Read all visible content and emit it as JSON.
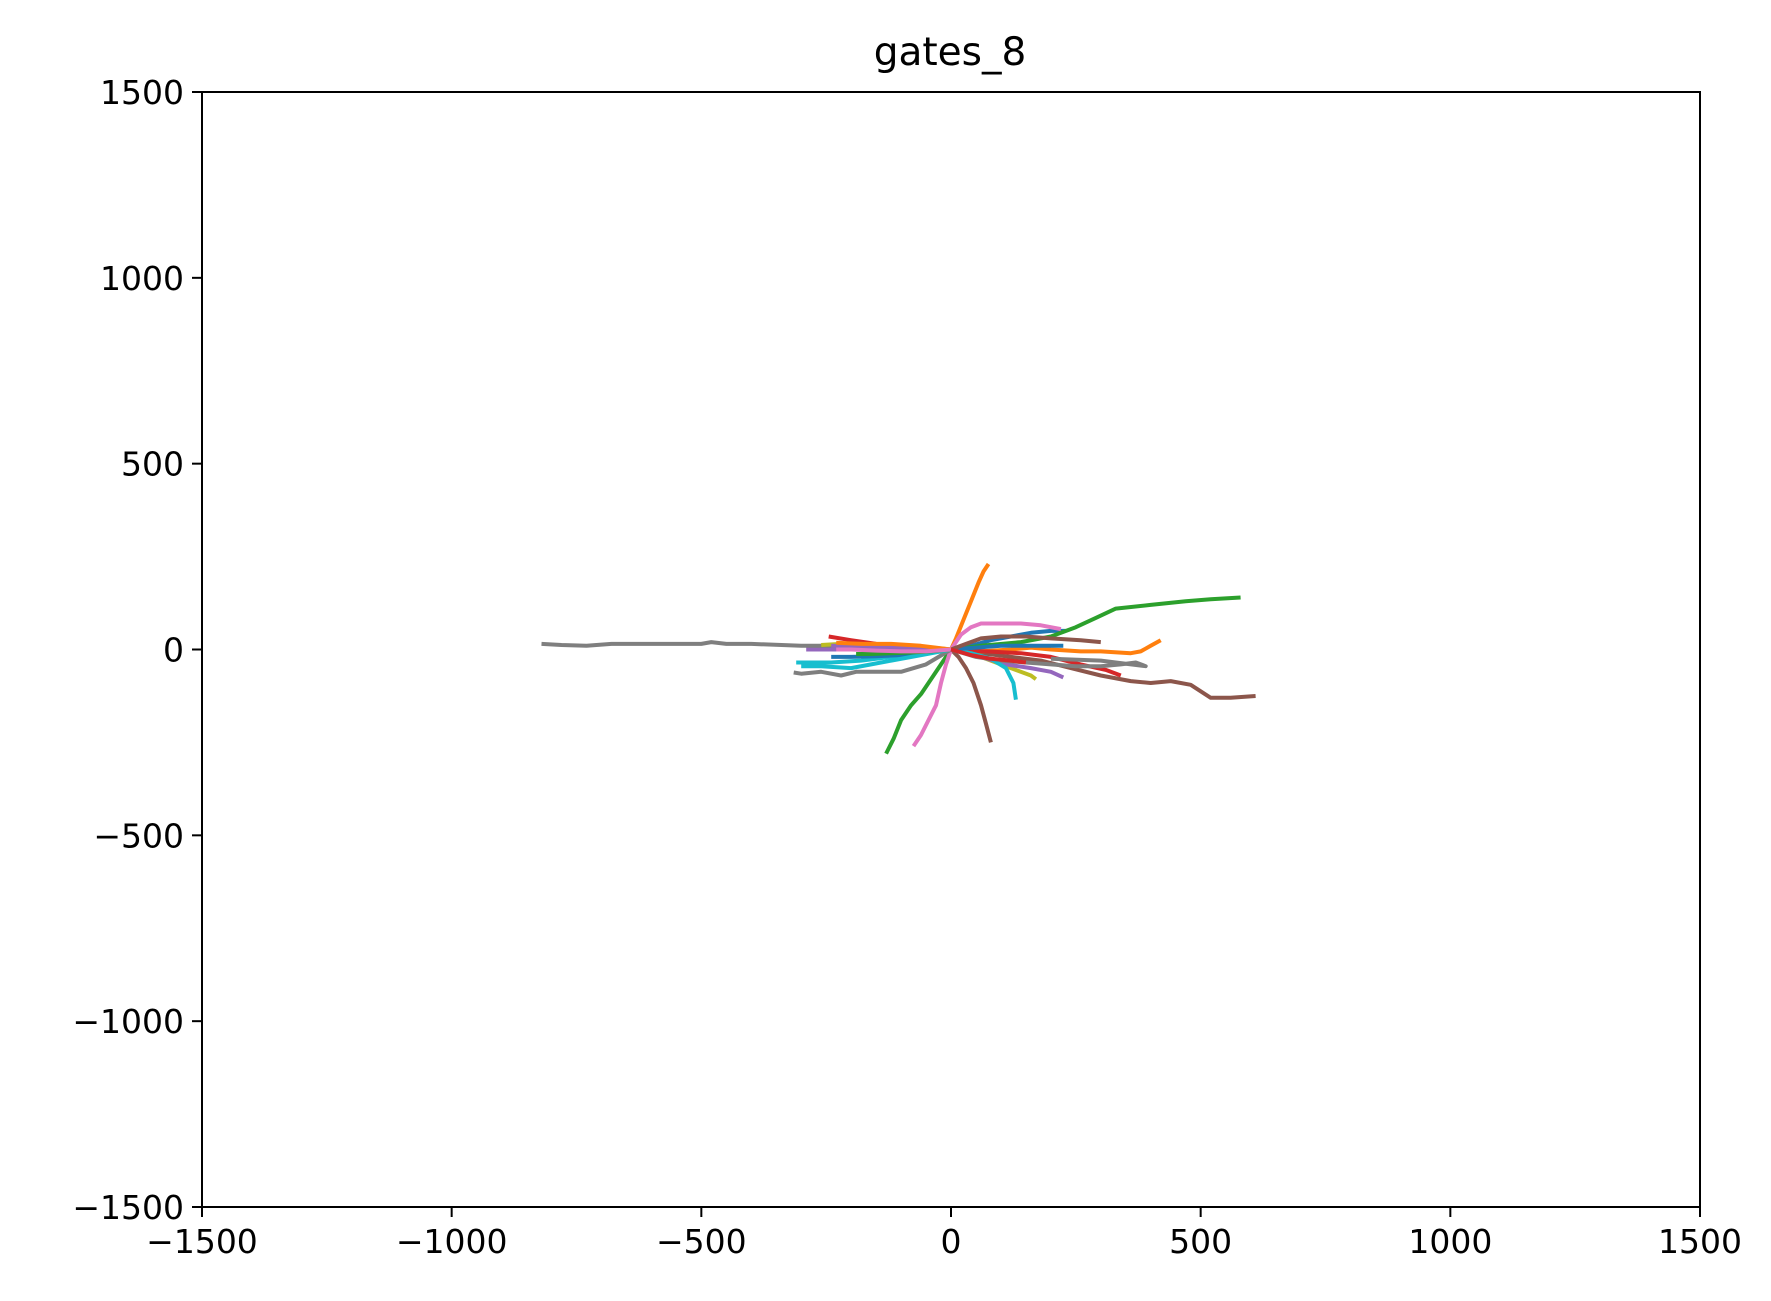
{
  "chart_data": {
    "type": "line",
    "title": "gates_8",
    "xlabel": "",
    "ylabel": "",
    "xlim": [
      -1500,
      1500
    ],
    "ylim": [
      -1500,
      1500
    ],
    "x_ticks": [
      -1500,
      -1000,
      -500,
      0,
      500,
      1000,
      1500
    ],
    "y_ticks": [
      -1500,
      -1000,
      -500,
      0,
      500,
      1000,
      1500
    ],
    "x_tick_labels": [
      "−1500",
      "−1000",
      "−500",
      "0",
      "500",
      "1000",
      "1500"
    ],
    "y_tick_labels": [
      "−1500",
      "−1000",
      "−500",
      "0",
      "500",
      "1000",
      "1500"
    ],
    "grid": false,
    "series": [
      {
        "color": "#1f77b4",
        "points": [
          [
            0,
            0
          ],
          [
            40,
            10
          ],
          [
            80,
            25
          ],
          [
            120,
            35
          ],
          [
            160,
            45
          ],
          [
            200,
            50
          ],
          [
            230,
            50
          ]
        ]
      },
      {
        "color": "#ff7f0e",
        "points": [
          [
            0,
            0
          ],
          [
            10,
            30
          ],
          [
            25,
            80
          ],
          [
            40,
            130
          ],
          [
            55,
            180
          ],
          [
            65,
            210
          ],
          [
            75,
            230
          ]
        ]
      },
      {
        "color": "#2ca02c",
        "points": [
          [
            0,
            0
          ],
          [
            60,
            10
          ],
          [
            140,
            20
          ],
          [
            200,
            35
          ],
          [
            250,
            60
          ],
          [
            290,
            85
          ],
          [
            330,
            110
          ],
          [
            400,
            120
          ],
          [
            470,
            130
          ],
          [
            520,
            135
          ],
          [
            580,
            140
          ]
        ]
      },
      {
        "color": "#d62728",
        "points": [
          [
            0,
            0
          ],
          [
            -50,
            5
          ],
          [
            -100,
            10
          ],
          [
            -150,
            15
          ],
          [
            -200,
            25
          ],
          [
            -245,
            35
          ]
        ]
      },
      {
        "color": "#9467bd",
        "points": [
          [
            0,
            0
          ],
          [
            -60,
            -5
          ],
          [
            -120,
            -5
          ],
          [
            -180,
            0
          ],
          [
            -240,
            0
          ],
          [
            -290,
            0
          ]
        ]
      },
      {
        "color": "#8c564b",
        "points": [
          [
            0,
            0
          ],
          [
            60,
            -10
          ],
          [
            120,
            -20
          ],
          [
            180,
            -30
          ],
          [
            240,
            -50
          ],
          [
            300,
            -70
          ],
          [
            360,
            -85
          ],
          [
            400,
            -90
          ],
          [
            440,
            -85
          ],
          [
            480,
            -95
          ],
          [
            520,
            -130
          ],
          [
            560,
            -130
          ],
          [
            610,
            -125
          ]
        ]
      },
      {
        "color": "#e377c2",
        "points": [
          [
            0,
            0
          ],
          [
            20,
            40
          ],
          [
            40,
            60
          ],
          [
            60,
            70
          ],
          [
            100,
            70
          ],
          [
            140,
            70
          ],
          [
            180,
            65
          ],
          [
            220,
            55
          ]
        ]
      },
      {
        "color": "#7f7f7f",
        "points": [
          [
            0,
            0
          ],
          [
            -100,
            5
          ],
          [
            -200,
            10
          ],
          [
            -300,
            10
          ],
          [
            -400,
            15
          ],
          [
            -450,
            15
          ],
          [
            -480,
            20
          ],
          [
            -500,
            15
          ],
          [
            -550,
            15
          ],
          [
            -600,
            15
          ],
          [
            -680,
            15
          ],
          [
            -730,
            10
          ],
          [
            -780,
            12
          ],
          [
            -820,
            15
          ]
        ]
      },
      {
        "color": "#bcbd22",
        "points": [
          [
            0,
            0
          ],
          [
            40,
            -10
          ],
          [
            80,
            -30
          ],
          [
            120,
            -50
          ],
          [
            160,
            -70
          ],
          [
            170,
            -80
          ]
        ]
      },
      {
        "color": "#17becf",
        "points": [
          [
            0,
            0
          ],
          [
            -60,
            -10
          ],
          [
            -120,
            -20
          ],
          [
            -180,
            -30
          ],
          [
            -240,
            -35
          ],
          [
            -310,
            -35
          ]
        ]
      },
      {
        "color": "#1f77b4",
        "points": [
          [
            0,
            0
          ],
          [
            -50,
            -10
          ],
          [
            -100,
            -15
          ],
          [
            -150,
            -18
          ],
          [
            -200,
            -20
          ],
          [
            -240,
            -20
          ]
        ]
      },
      {
        "color": "#ff7f0e",
        "points": [
          [
            0,
            0
          ],
          [
            60,
            -5
          ],
          [
            120,
            0
          ],
          [
            160,
            5
          ],
          [
            200,
            0
          ],
          [
            260,
            -5
          ],
          [
            300,
            -5
          ],
          [
            360,
            -10
          ],
          [
            380,
            -5
          ],
          [
            400,
            10
          ],
          [
            420,
            25
          ]
        ]
      },
      {
        "color": "#2ca02c",
        "points": [
          [
            0,
            0
          ],
          [
            -20,
            -40
          ],
          [
            -40,
            -80
          ],
          [
            -60,
            -120
          ],
          [
            -80,
            -150
          ],
          [
            -100,
            -190
          ],
          [
            -115,
            -240
          ],
          [
            -130,
            -280
          ]
        ]
      },
      {
        "color": "#d62728",
        "points": [
          [
            0,
            0
          ],
          [
            70,
            -5
          ],
          [
            140,
            -10
          ],
          [
            200,
            -20
          ],
          [
            260,
            -40
          ],
          [
            310,
            -55
          ],
          [
            340,
            -70
          ]
        ]
      },
      {
        "color": "#9467bd",
        "points": [
          [
            0,
            0
          ],
          [
            60,
            -20
          ],
          [
            110,
            -40
          ],
          [
            160,
            -50
          ],
          [
            200,
            -60
          ],
          [
            225,
            -75
          ]
        ]
      },
      {
        "color": "#8c564b",
        "points": [
          [
            0,
            0
          ],
          [
            15,
            -20
          ],
          [
            30,
            -50
          ],
          [
            45,
            -90
          ],
          [
            60,
            -150
          ],
          [
            70,
            -200
          ],
          [
            80,
            -250
          ]
        ]
      },
      {
        "color": "#e377c2",
        "points": [
          [
            0,
            0
          ],
          [
            -10,
            -40
          ],
          [
            -20,
            -90
          ],
          [
            -30,
            -150
          ],
          [
            -45,
            -190
          ],
          [
            -60,
            -230
          ],
          [
            -75,
            -260
          ]
        ]
      },
      {
        "color": "#7f7f7f",
        "points": [
          [
            0,
            0
          ],
          [
            50,
            -20
          ],
          [
            100,
            -30
          ],
          [
            150,
            -35
          ],
          [
            200,
            -40
          ],
          [
            250,
            -45
          ],
          [
            300,
            -45
          ],
          [
            340,
            -40
          ],
          [
            370,
            -35
          ],
          [
            390,
            -45
          ],
          [
            300,
            -30
          ],
          [
            200,
            -25
          ]
        ]
      },
      {
        "color": "#7f7f7f",
        "points": [
          [
            0,
            0
          ],
          [
            -50,
            -40
          ],
          [
            -100,
            -60
          ],
          [
            -150,
            -60
          ],
          [
            -190,
            -60
          ],
          [
            -220,
            -70
          ],
          [
            -260,
            -60
          ],
          [
            -300,
            -65
          ],
          [
            -315,
            -62
          ]
        ]
      },
      {
        "color": "#bcbd22",
        "points": [
          [
            0,
            0
          ],
          [
            -60,
            8
          ],
          [
            -120,
            12
          ],
          [
            -180,
            15
          ],
          [
            -220,
            15
          ],
          [
            -260,
            12
          ]
        ]
      },
      {
        "color": "#17becf",
        "points": [
          [
            0,
            0
          ],
          [
            40,
            -10
          ],
          [
            80,
            -25
          ],
          [
            110,
            -50
          ],
          [
            125,
            -90
          ],
          [
            130,
            -135
          ]
        ]
      },
      {
        "color": "#17becf",
        "points": [
          [
            0,
            0
          ],
          [
            -60,
            -15
          ],
          [
            -120,
            -30
          ],
          [
            -160,
            -40
          ],
          [
            -200,
            -50
          ],
          [
            -260,
            -45
          ],
          [
            -300,
            -45
          ]
        ]
      },
      {
        "color": "#1f77b4",
        "points": [
          [
            0,
            0
          ],
          [
            50,
            5
          ],
          [
            100,
            10
          ],
          [
            150,
            10
          ],
          [
            190,
            10
          ],
          [
            225,
            10
          ]
        ]
      },
      {
        "color": "#2ca02c",
        "points": [
          [
            0,
            0
          ],
          [
            -40,
            -5
          ],
          [
            -80,
            -8
          ],
          [
            -120,
            -10
          ],
          [
            -160,
            -12
          ],
          [
            -190,
            -12
          ]
        ]
      },
      {
        "color": "#8c564b",
        "points": [
          [
            0,
            0
          ],
          [
            30,
            15
          ],
          [
            60,
            30
          ],
          [
            100,
            35
          ],
          [
            150,
            35
          ],
          [
            200,
            30
          ],
          [
            260,
            25
          ],
          [
            300,
            20
          ]
        ]
      },
      {
        "color": "#9467bd",
        "points": [
          [
            0,
            0
          ],
          [
            -50,
            0
          ],
          [
            -100,
            5
          ],
          [
            -150,
            5
          ],
          [
            -200,
            8
          ],
          [
            -240,
            10
          ]
        ]
      },
      {
        "color": "#ff7f0e",
        "points": [
          [
            0,
            0
          ],
          [
            -60,
            10
          ],
          [
            -120,
            15
          ],
          [
            -180,
            15
          ],
          [
            -230,
            18
          ]
        ]
      },
      {
        "color": "#e377c2",
        "points": [
          [
            0,
            0
          ],
          [
            -50,
            -5
          ],
          [
            -100,
            -5
          ],
          [
            -150,
            -3
          ],
          [
            -200,
            0
          ],
          [
            -230,
            0
          ]
        ]
      },
      {
        "color": "#d62728",
        "points": [
          [
            0,
            0
          ],
          [
            40,
            -15
          ],
          [
            80,
            -25
          ],
          [
            120,
            -30
          ],
          [
            150,
            -35
          ]
        ]
      }
    ]
  }
}
